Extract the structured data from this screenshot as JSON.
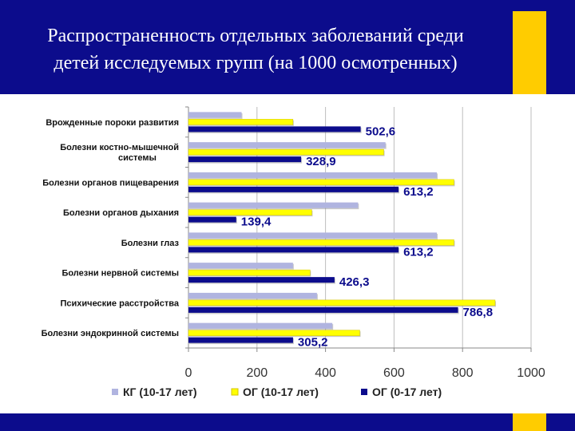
{
  "slide": {
    "title_line1": "Распространенность отдельных заболеваний среди",
    "title_line2": "детей исследуемых групп (на 1000 осмотренных)"
  },
  "colors": {
    "header": "#0c0c8c",
    "accent": "#ffcc00"
  },
  "chart_data": {
    "type": "bar",
    "orientation": "horizontal",
    "title": "",
    "xlabel": "",
    "ylabel": "",
    "xlim": [
      0,
      1000
    ],
    "ticks": [
      0,
      200,
      400,
      600,
      800,
      1000
    ],
    "grid": true,
    "legend_position": "bottom",
    "categories": [
      [
        "Врожденные пороки развития"
      ],
      [
        "Болезни костно-мышечной",
        "системы"
      ],
      [
        "Болезни органов пищеварения"
      ],
      [
        "Болезни органов дыхания"
      ],
      [
        "Болезни глаз"
      ],
      [
        "Болезни нервной системы"
      ],
      [
        "Психические расстройства"
      ],
      [
        "Болезни эндокринной системы"
      ]
    ],
    "series": [
      {
        "name": "КГ (10-17 лет)",
        "color": "#b0b4e0",
        "values": [
          155,
          575,
          725,
          495,
          725,
          305,
          375,
          420
        ]
      },
      {
        "name": "ОГ (10-17 лет)",
        "color": "#ffff00",
        "values": [
          305,
          570,
          775,
          360,
          775,
          355,
          895,
          500
        ]
      },
      {
        "name": "ОГ  (0-17 лет)",
        "color": "#0c0c8c",
        "values": [
          502.6,
          328.9,
          613.2,
          139.4,
          613.2,
          426.3,
          786.8,
          305.2
        ]
      }
    ],
    "data_labels": [
      "502,6",
      "328,9",
      "613,2",
      "139,4",
      "613,2",
      "426,3",
      "786,8",
      "305,2"
    ]
  }
}
